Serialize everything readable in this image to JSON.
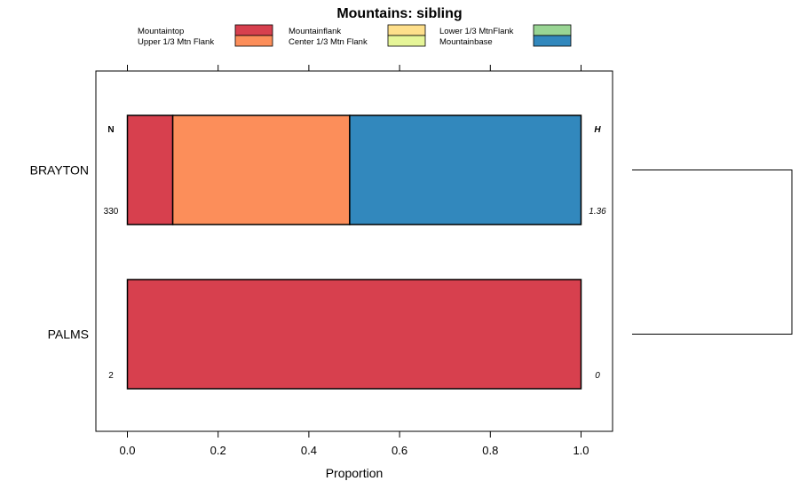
{
  "chart_data": {
    "type": "bar",
    "orientation": "horizontal",
    "stacked": true,
    "title": "Mountains: sibling",
    "xlabel": "Proportion",
    "ylabel": "",
    "xlim": [
      -0.07,
      1.07
    ],
    "xticks": [
      0.0,
      0.2,
      0.4,
      0.6,
      0.8,
      1.0
    ],
    "xtick_labels": [
      "0.0",
      "0.2",
      "0.4",
      "0.6",
      "0.8",
      "1.0"
    ],
    "categories": [
      "BRAYTON",
      "PALMS"
    ],
    "series": [
      {
        "name": "Mountaintop",
        "color": "#d7404e",
        "values": [
          0.1,
          1.0
        ]
      },
      {
        "name": "Upper 1/3 Mtn Flank",
        "color": "#fc8e5a",
        "values": [
          0.39,
          0.0
        ]
      },
      {
        "name": "Mountainflank",
        "color": "#fedf8b",
        "values": [
          0.0,
          0.0
        ]
      },
      {
        "name": "Center 1/3 Mtn Flank",
        "color": "#e6f598",
        "values": [
          0.0,
          0.0
        ]
      },
      {
        "name": "Lower 1/3 MtnFlank",
        "color": "#99d594",
        "values": [
          0.0,
          0.0
        ]
      },
      {
        "name": "Mountainbase",
        "color": "#3288bd",
        "values": [
          0.51,
          0.0
        ]
      }
    ],
    "legend": {
      "placement": "top",
      "columns": [
        [
          "Mountaintop",
          "Upper 1/3 Mtn Flank"
        ],
        [
          "Mountainflank",
          "Center 1/3 Mtn Flank"
        ],
        [
          "Lower 1/3 MtnFlank",
          "Mountainbase"
        ]
      ]
    },
    "n_header": "N",
    "h_header": "H",
    "n_values": [
      "330",
      "2"
    ],
    "h_values": [
      "1.36",
      "0"
    ],
    "dendrogram": {
      "merges": [
        [
          "BRAYTON",
          "PALMS"
        ]
      ]
    }
  }
}
